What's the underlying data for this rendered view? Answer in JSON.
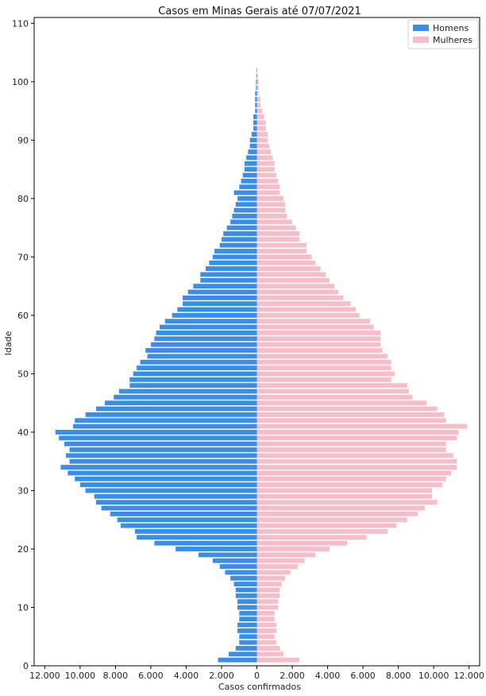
{
  "chart_data": {
    "type": "bar",
    "orientation": "horizontal",
    "title": "Casos em Minas Gerais até 07/07/2021",
    "xlabel": "Casos confirmados",
    "ylabel": "Idade",
    "xlim": [
      -12600,
      12600
    ],
    "ylim": [
      0,
      111
    ],
    "x_ticks": [
      -12000,
      -10000,
      -8000,
      -6000,
      -4000,
      -2000,
      0,
      2000,
      4000,
      6000,
      8000,
      10000,
      12000
    ],
    "x_tick_labels": [
      "12.000",
      "10.000",
      "8.000",
      "6.000",
      "4.000",
      "2.000",
      "0",
      "2.000",
      "4.000",
      "6.000",
      "8.000",
      "10.000",
      "12.000"
    ],
    "y_ticks": [
      0,
      10,
      20,
      30,
      40,
      50,
      60,
      70,
      80,
      90,
      100,
      110
    ],
    "y_tick_labels": [
      "0",
      "10",
      "20",
      "30",
      "40",
      "50",
      "60",
      "70",
      "80",
      "90",
      "100",
      "110"
    ],
    "legend_position": "top-right",
    "ages": [
      1,
      2,
      3,
      4,
      5,
      6,
      7,
      8,
      9,
      10,
      11,
      12,
      13,
      14,
      15,
      16,
      17,
      18,
      19,
      20,
      21,
      22,
      23,
      24,
      25,
      26,
      27,
      28,
      29,
      30,
      31,
      32,
      33,
      34,
      35,
      36,
      37,
      38,
      39,
      40,
      41,
      42,
      43,
      44,
      45,
      46,
      47,
      48,
      49,
      50,
      51,
      52,
      53,
      54,
      55,
      56,
      57,
      58,
      59,
      60,
      61,
      62,
      63,
      64,
      65,
      66,
      67,
      68,
      69,
      70,
      71,
      72,
      73,
      74,
      75,
      76,
      77,
      78,
      79,
      80,
      81,
      82,
      83,
      84,
      85,
      86,
      87,
      88,
      89,
      90,
      91,
      92,
      93,
      94,
      95,
      96,
      97,
      98,
      99,
      100,
      101,
      102
    ],
    "series": [
      {
        "name": "Homens",
        "color": "#3a8ee6",
        "values": [
          2200,
          1600,
          1200,
          1000,
          1000,
          1100,
          1100,
          1000,
          1000,
          1100,
          1100,
          1200,
          1200,
          1300,
          1500,
          1800,
          2100,
          2500,
          3300,
          4600,
          5800,
          6800,
          6900,
          7700,
          7900,
          8300,
          8800,
          9100,
          9200,
          9700,
          10000,
          10300,
          10700,
          11100,
          10600,
          10800,
          10600,
          10900,
          11200,
          11400,
          10400,
          10300,
          9700,
          9100,
          8600,
          8100,
          7800,
          7200,
          7200,
          7000,
          6800,
          6600,
          6200,
          6300,
          6000,
          5800,
          5700,
          5500,
          5200,
          4800,
          4500,
          4200,
          4200,
          3900,
          3600,
          3200,
          3200,
          2900,
          2700,
          2500,
          2400,
          2100,
          2000,
          1900,
          1700,
          1500,
          1400,
          1300,
          1200,
          1100,
          1300,
          1000,
          900,
          800,
          700,
          700,
          600,
          500,
          400,
          400,
          300,
          200,
          200,
          200,
          100,
          100,
          100,
          100,
          50,
          50,
          30,
          20
        ]
      },
      {
        "name": "Mulheres",
        "color": "#f5bec8",
        "values": [
          2400,
          1500,
          1300,
          1100,
          1000,
          1100,
          1100,
          1000,
          1000,
          1200,
          1200,
          1300,
          1300,
          1400,
          1600,
          1900,
          2300,
          2700,
          3300,
          4100,
          5100,
          6200,
          7400,
          7900,
          8500,
          9100,
          9500,
          10200,
          9900,
          9900,
          10500,
          10700,
          11000,
          11300,
          11300,
          11100,
          10700,
          10700,
          11300,
          11400,
          11900,
          10700,
          10600,
          10200,
          9600,
          8800,
          8600,
          8500,
          7600,
          7800,
          7600,
          7600,
          7400,
          7100,
          7000,
          7000,
          7000,
          6600,
          6400,
          5800,
          5600,
          5300,
          4900,
          4600,
          4400,
          4100,
          3900,
          3600,
          3300,
          3100,
          2800,
          2800,
          2400,
          2400,
          2200,
          2000,
          1700,
          1600,
          1600,
          1500,
          1300,
          1300,
          1200,
          1100,
          1000,
          1000,
          900,
          800,
          700,
          600,
          600,
          500,
          500,
          400,
          300,
          200,
          200,
          100,
          100,
          100,
          50,
          30
        ]
      }
    ]
  }
}
